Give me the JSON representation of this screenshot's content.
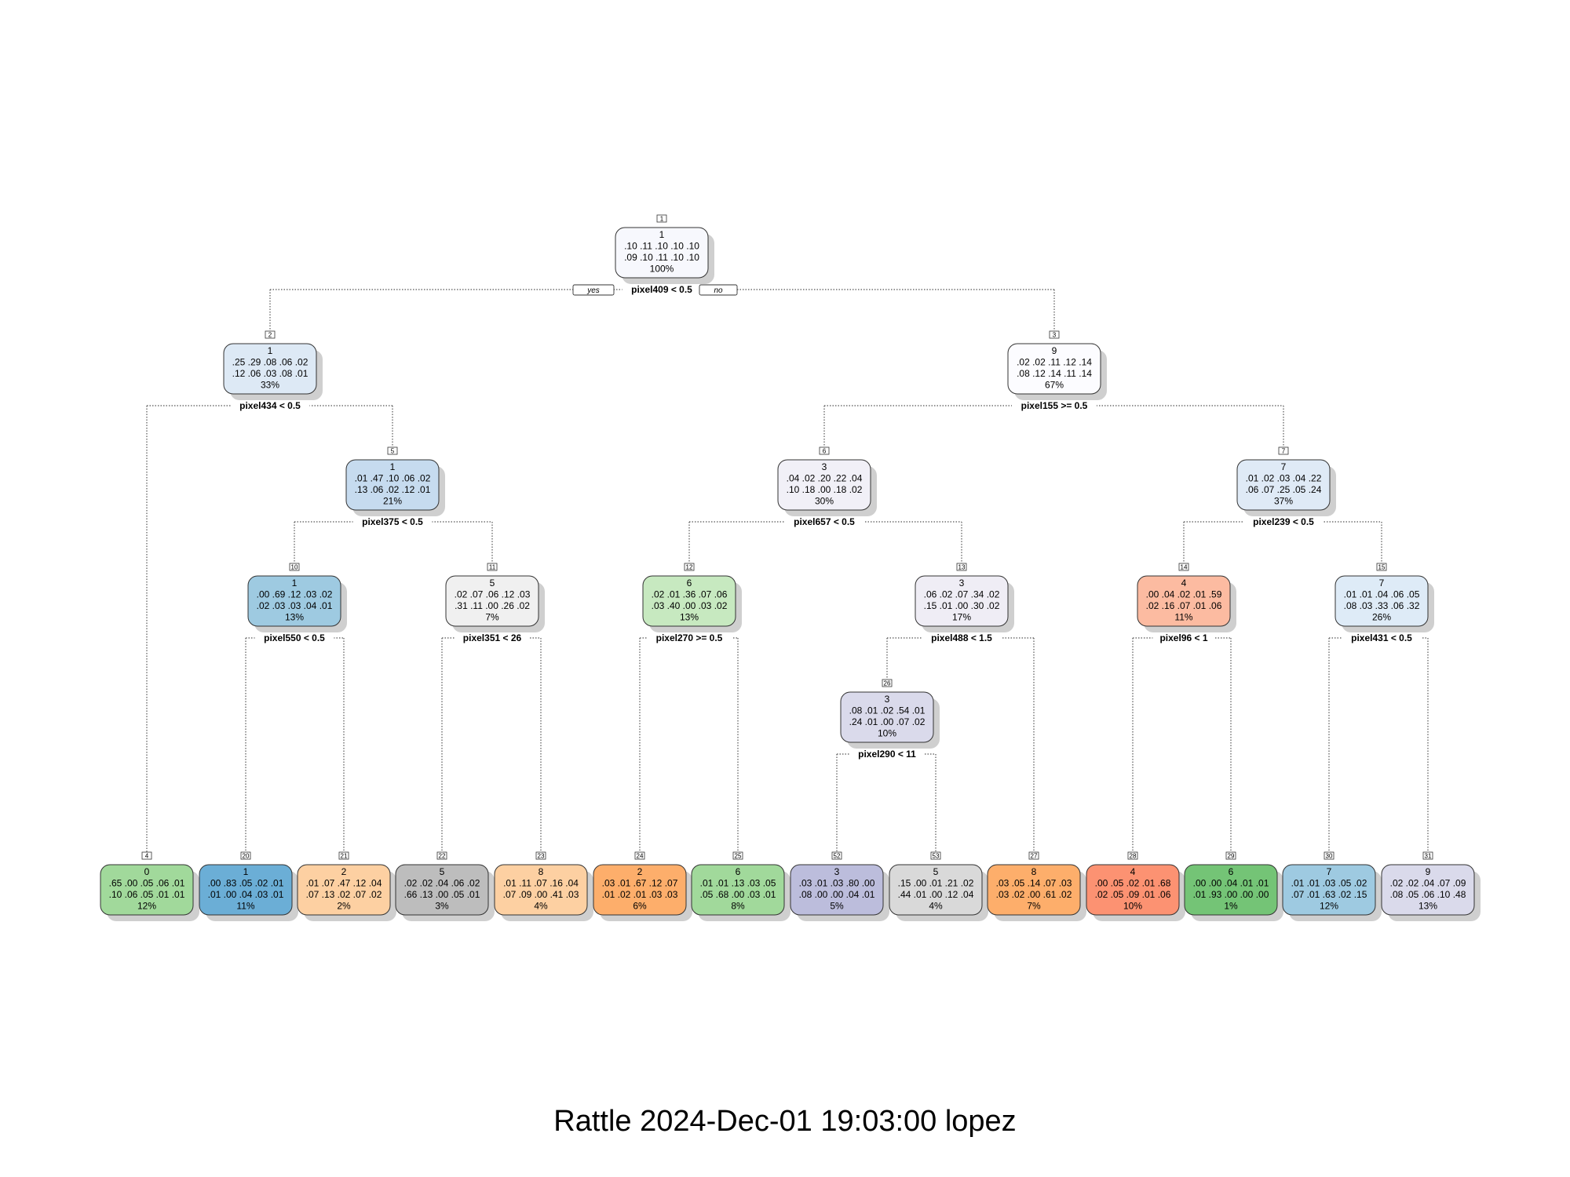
{
  "caption": "Rattle 2024-Dec-01 19:03:00 lopez",
  "branch_labels": {
    "yes": "yes",
    "no": "no"
  },
  "nodes": [
    {
      "id": "1",
      "cls": "1",
      "row1": ".10 .11 .10 .10 .10",
      "row2": ".09 .10 .11 .10 .10",
      "pct": "100%",
      "fill": "#f7f8fd",
      "split": "pixel409 < 0.5"
    },
    {
      "id": "2",
      "cls": "1",
      "row1": ".25 .29 .08 .06 .02",
      "row2": ".12 .06 .03 .08 .01",
      "pct": "33%",
      "fill": "#dde9f5",
      "split": "pixel434 < 0.5"
    },
    {
      "id": "3",
      "cls": "9",
      "row1": ".02 .02 .11 .12 .14",
      "row2": ".08 .12 .14 .11 .14",
      "pct": "67%",
      "fill": "#fcfcff",
      "split": "pixel155 >= 0.5"
    },
    {
      "id": "5",
      "cls": "1",
      "row1": ".01 .47 .10 .06 .02",
      "row2": ".13 .06 .02 .12 .01",
      "pct": "21%",
      "fill": "#c6dbef",
      "split": "pixel375 < 0.5"
    },
    {
      "id": "6",
      "cls": "3",
      "row1": ".04 .02 .20 .22 .04",
      "row2": ".10 .18 .00 .18 .02",
      "pct": "30%",
      "fill": "#f1f0f7",
      "split": "pixel657 < 0.5"
    },
    {
      "id": "7",
      "cls": "7",
      "row1": ".01 .02 .03 .04 .22",
      "row2": ".06 .07 .25 .05 .24",
      "pct": "37%",
      "fill": "#dfeaf6",
      "split": "pixel239 < 0.5"
    },
    {
      "id": "10",
      "cls": "1",
      "row1": ".00 .69 .12 .03 .02",
      "row2": ".02 .03 .03 .04 .01",
      "pct": "13%",
      "fill": "#9ecae1",
      "split": "pixel550 < 0.5"
    },
    {
      "id": "11",
      "cls": "5",
      "row1": ".02 .07 .06 .12 .03",
      "row2": ".31 .11 .00 .26 .02",
      "pct": "7%",
      "fill": "#f0f0f0",
      "split": "pixel351 < 26"
    },
    {
      "id": "12",
      "cls": "6",
      "row1": ".02 .01 .36 .07 .06",
      "row2": ".03 .40 .00 .03 .02",
      "pct": "13%",
      "fill": "#c7e9c0",
      "split": "pixel270 >= 0.5"
    },
    {
      "id": "13",
      "cls": "3",
      "row1": ".06 .02 .07 .34 .02",
      "row2": ".15 .01 .00 .30 .02",
      "pct": "17%",
      "fill": "#efedf5",
      "split": "pixel488 < 1.5"
    },
    {
      "id": "14",
      "cls": "4",
      "row1": ".00 .04 .02 .01 .59",
      "row2": ".02 .16 .07 .01 .06",
      "pct": "11%",
      "fill": "#fcbba1",
      "split": "pixel96 < 1"
    },
    {
      "id": "15",
      "cls": "7",
      "row1": ".01 .01 .04 .06 .05",
      "row2": ".08 .03 .33 .06 .32",
      "pct": "26%",
      "fill": "#deebf7",
      "split": "pixel431 < 0.5"
    },
    {
      "id": "26",
      "cls": "3",
      "row1": ".08 .01 .02 .54 .01",
      "row2": ".24 .01 .00 .07 .02",
      "pct": "10%",
      "fill": "#dadaeb",
      "split": "pixel290 < 11"
    },
    {
      "id": "4",
      "cls": "0",
      "row1": ".65 .00 .05 .06 .01",
      "row2": ".10 .06 .05 .01 .01",
      "pct": "12%",
      "fill": "#a1d99b",
      "split": ""
    },
    {
      "id": "20",
      "cls": "1",
      "row1": ".00 .83 .05 .02 .01",
      "row2": ".01 .00 .04 .03 .01",
      "pct": "11%",
      "fill": "#6baed6",
      "split": ""
    },
    {
      "id": "21",
      "cls": "2",
      "row1": ".01 .07 .47 .12 .04",
      "row2": ".07 .13 .02 .07 .02",
      "pct": "2%",
      "fill": "#fdd0a2",
      "split": ""
    },
    {
      "id": "22",
      "cls": "5",
      "row1": ".02 .02 .04 .06 .02",
      "row2": ".66 .13 .00 .05 .01",
      "pct": "3%",
      "fill": "#bdbdbd",
      "split": ""
    },
    {
      "id": "23",
      "cls": "8",
      "row1": ".01 .11 .07 .16 .04",
      "row2": ".07 .09 .00 .41 .03",
      "pct": "4%",
      "fill": "#fdd0a2",
      "split": ""
    },
    {
      "id": "24",
      "cls": "2",
      "row1": ".03 .01 .67 .12 .07",
      "row2": ".01 .02 .01 .03 .03",
      "pct": "6%",
      "fill": "#fdae6b",
      "split": ""
    },
    {
      "id": "25",
      "cls": "6",
      "row1": ".01 .01 .13 .03 .05",
      "row2": ".05 .68 .00 .03 .01",
      "pct": "8%",
      "fill": "#a1d99b",
      "split": ""
    },
    {
      "id": "52",
      "cls": "3",
      "row1": ".03 .01 .03 .80 .00",
      "row2": ".08 .00 .00 .04 .01",
      "pct": "5%",
      "fill": "#bcbddc",
      "split": ""
    },
    {
      "id": "53",
      "cls": "5",
      "row1": ".15 .00 .01 .21 .02",
      "row2": ".44 .01 .00 .12 .04",
      "pct": "4%",
      "fill": "#d9d9d9",
      "split": ""
    },
    {
      "id": "27",
      "cls": "8",
      "row1": ".03 .05 .14 .07 .03",
      "row2": ".03 .02 .00 .61 .02",
      "pct": "7%",
      "fill": "#fdae6b",
      "split": ""
    },
    {
      "id": "28",
      "cls": "4",
      "row1": ".00 .05 .02 .01 .68",
      "row2": ".02 .05 .09 .01 .06",
      "pct": "10%",
      "fill": "#fc9272",
      "split": ""
    },
    {
      "id": "29",
      "cls": "6",
      "row1": ".00 .00 .04 .01 .01",
      "row2": ".01 .93 .00 .00 .00",
      "pct": "1%",
      "fill": "#74c476",
      "split": ""
    },
    {
      "id": "30",
      "cls": "7",
      "row1": ".01 .01 .03 .05 .02",
      "row2": ".07 .01 .63 .02 .15",
      "pct": "12%",
      "fill": "#9ecae1",
      "split": ""
    },
    {
      "id": "31",
      "cls": "9",
      "row1": ".02 .02 .04 .07 .09",
      "row2": ".08 .05 .06 .10 .48",
      "pct": "13%",
      "fill": "#dadaeb",
      "split": ""
    }
  ],
  "edges": [
    [
      "1",
      "2"
    ],
    [
      "1",
      "3"
    ],
    [
      "2",
      "4"
    ],
    [
      "2",
      "5"
    ],
    [
      "5",
      "10"
    ],
    [
      "5",
      "11"
    ],
    [
      "10",
      "20"
    ],
    [
      "10",
      "21"
    ],
    [
      "11",
      "22"
    ],
    [
      "11",
      "23"
    ],
    [
      "3",
      "6"
    ],
    [
      "3",
      "7"
    ],
    [
      "6",
      "12"
    ],
    [
      "6",
      "13"
    ],
    [
      "12",
      "24"
    ],
    [
      "12",
      "25"
    ],
    [
      "13",
      "26"
    ],
    [
      "13",
      "27"
    ],
    [
      "26",
      "52"
    ],
    [
      "26",
      "53"
    ],
    [
      "7",
      "14"
    ],
    [
      "7",
      "15"
    ],
    [
      "14",
      "28"
    ],
    [
      "14",
      "29"
    ],
    [
      "15",
      "30"
    ],
    [
      "15",
      "31"
    ]
  ]
}
